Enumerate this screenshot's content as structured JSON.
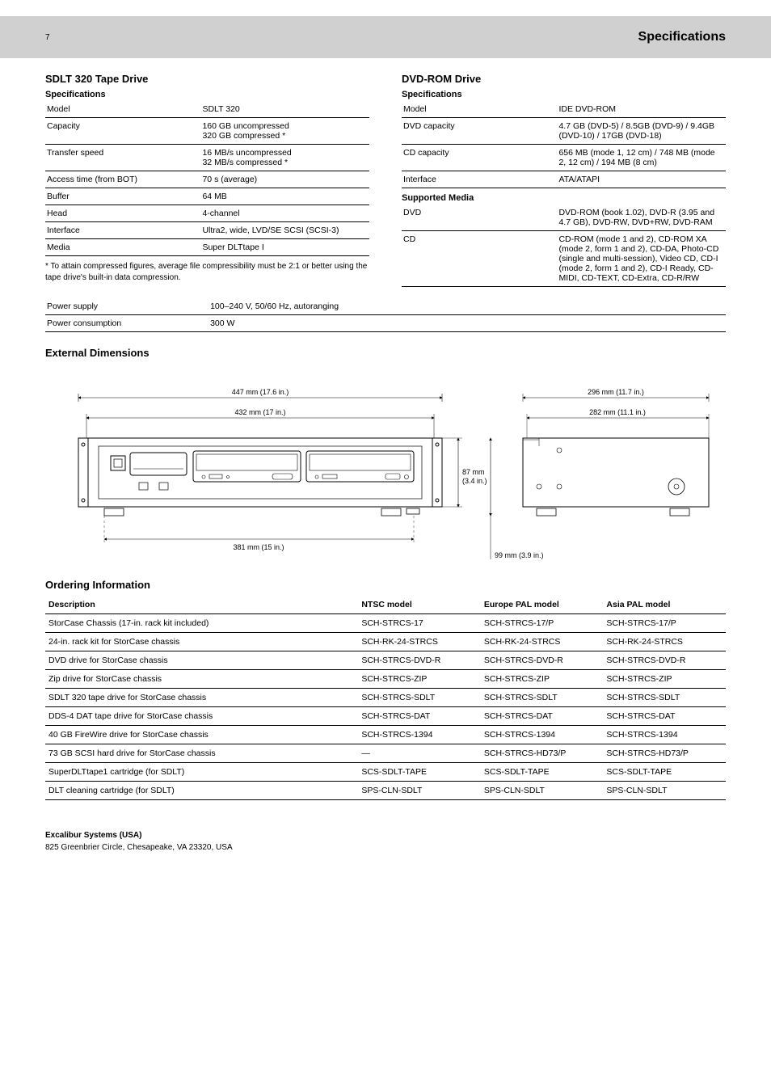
{
  "header": {
    "title": "Specifications",
    "page_num": "7"
  },
  "left_spec": {
    "title": "SDLT 320 Tape Drive",
    "sub": "Specifications",
    "rows": [
      [
        "Model",
        "SDLT 320"
      ],
      [
        "Capacity",
        "160 GB uncompressed\n320 GB compressed *"
      ],
      [
        "Transfer speed",
        "16 MB/s uncompressed\n32 MB/s compressed *"
      ],
      [
        "Access time (from BOT)",
        "70 s (average)"
      ],
      [
        "Buffer",
        "64 MB"
      ],
      [
        "Head",
        "4-channel"
      ],
      [
        "Interface",
        "Ultra2, wide, LVD/SE SCSI (SCSI-3)"
      ],
      [
        "Media",
        "Super DLTtape I"
      ]
    ],
    "note": "* To attain compressed figures, average file compressibility must be 2:1 or better using the tape drive's built-in data compression."
  },
  "right_spec": {
    "title": "DVD-ROM Drive",
    "sub": "Specifications",
    "rows_a": [
      [
        "Model",
        "IDE DVD-ROM"
      ],
      [
        "DVD capacity",
        "4.7 GB (DVD-5) / 8.5GB (DVD-9) / 9.4GB (DVD-10) / 17GB (DVD-18)"
      ],
      [
        "CD capacity",
        "656 MB (mode 1, 12 cm) / 748 MB (mode 2, 12 cm) / 194 MB (8 cm)"
      ],
      [
        "Interface",
        "ATA/ATAPI"
      ]
    ],
    "sub2": "Supported Media",
    "rows_b": [
      [
        "DVD",
        "DVD-ROM (book 1.02), DVD-R (3.95 and 4.7 GB), DVD-RW, DVD+RW, DVD-RAM"
      ],
      [
        "CD",
        "CD-ROM (mode 1 and 2), CD-ROM XA (mode 2, form 1 and 2), CD-DA, Photo-CD (single and multi-session), Video CD, CD-I (mode 2, form 1 and 2), CD-I Ready, CD-MIDI, CD-TEXT, CD-Extra, CD-R/RW"
      ]
    ]
  },
  "gen_spec": {
    "rows": [
      [
        "Power supply",
        "100–240 V, 50/60 Hz, autoranging"
      ],
      [
        "Power consumption",
        "300 W"
      ]
    ]
  },
  "drawing": {
    "title": "External Dimensions",
    "width_mm": "447 mm (17.6 in.)",
    "inner_width_mm": "432 mm (17 in.)",
    "rack_width_mm": "381 mm (15 in.)",
    "depth_mm": "296 mm (11.7 in.)",
    "inner_depth_mm": "282 mm (11.1 in.)",
    "height_mm": "99 mm (3.9 in.)",
    "body_height_mm": "87 mm (3.4 in.)",
    "colors": {
      "stroke": "#000000",
      "fill": "#ffffff",
      "fill_grey": "#f2f2f2"
    }
  },
  "ord": {
    "title": "Ordering Information",
    "head": [
      "Description",
      "NTSC model",
      "Europe PAL model",
      "Asia PAL model"
    ],
    "rows": [
      [
        "StorCase Chassis (17-in. rack kit included)",
        "SCH-STRCS-17",
        "SCH-STRCS-17/P",
        "SCH-STRCS-17/P"
      ],
      [
        "24-in. rack kit for StorCase chassis",
        "SCH-RK-24-STRCS",
        "SCH-RK-24-STRCS",
        "SCH-RK-24-STRCS"
      ],
      [
        "DVD drive for StorCase chassis",
        "SCH-STRCS-DVD-R",
        "SCH-STRCS-DVD-R",
        "SCH-STRCS-DVD-R"
      ],
      [
        "Zip drive for StorCase chassis",
        "SCH-STRCS-ZIP",
        "SCH-STRCS-ZIP",
        "SCH-STRCS-ZIP"
      ],
      [
        "SDLT 320 tape drive for StorCase chassis",
        "SCH-STRCS-SDLT",
        "SCH-STRCS-SDLT",
        "SCH-STRCS-SDLT"
      ],
      [
        "DDS-4 DAT tape drive for StorCase chassis",
        "SCH-STRCS-DAT",
        "SCH-STRCS-DAT",
        "SCH-STRCS-DAT"
      ],
      [
        "40 GB FireWire drive for StorCase chassis",
        "SCH-STRCS-1394",
        "SCH-STRCS-1394",
        "SCH-STRCS-1394"
      ],
      [
        "73 GB SCSI hard drive for StorCase chassis",
        "—",
        "SCH-STRCS-HD73/P",
        "SCH-STRCS-HD73/P"
      ],
      [
        "SuperDLTtape1 cartridge (for SDLT)",
        "SCS-SDLT-TAPE",
        "SCS-SDLT-TAPE",
        "SCS-SDLT-TAPE"
      ],
      [
        "DLT cleaning cartridge (for SDLT)",
        "SPS-CLN-SDLT",
        "SPS-CLN-SDLT",
        "SPS-CLN-SDLT"
      ]
    ]
  },
  "footer": {
    "company": "Excalibur Systems (USA)",
    "addr": "825 Greenbrier Circle, Chesapeake, VA 23320, USA"
  }
}
